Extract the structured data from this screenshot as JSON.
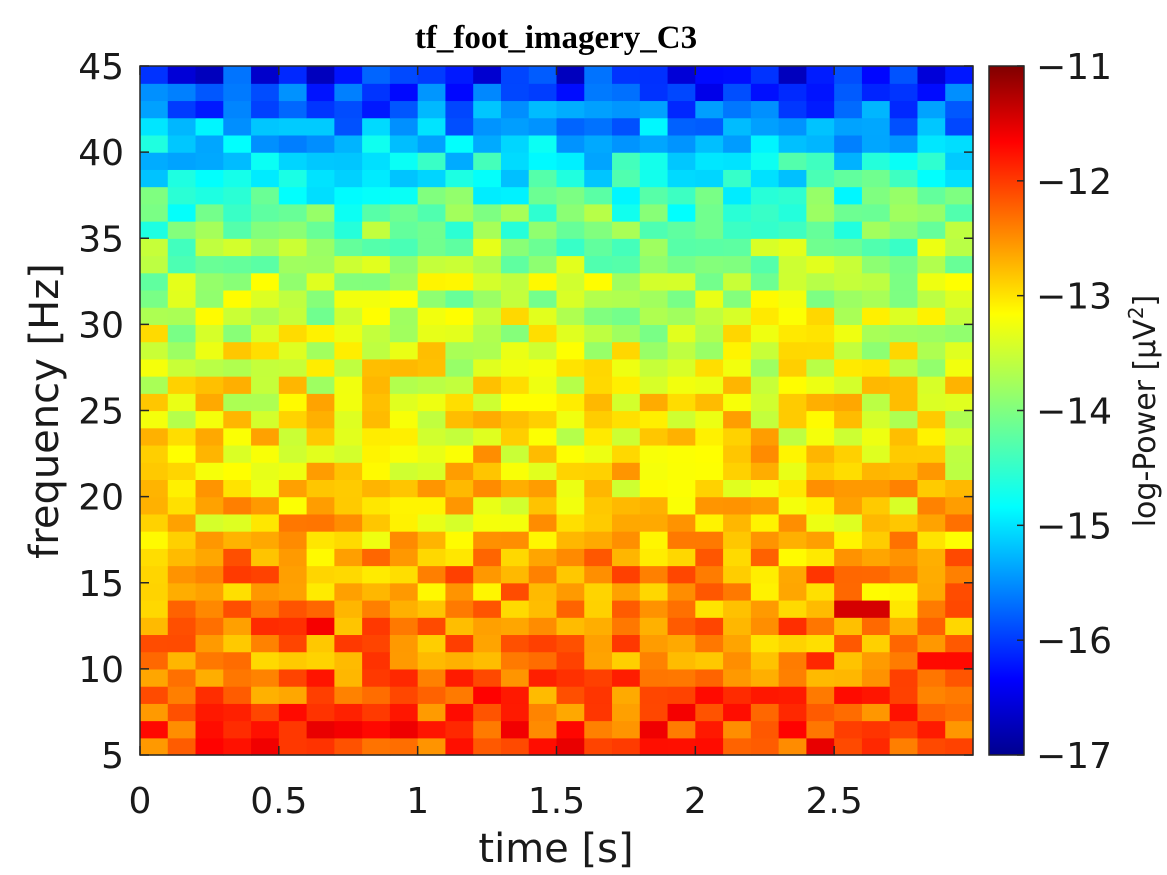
{
  "chart_data": {
    "type": "heatmap",
    "title": "tf_foot_imagery_C3",
    "xlabel": "time [s]",
    "ylabel": "frequency [Hz]",
    "colorbar_label": "log-Power [µV",
    "colorbar_label_superscript": "2",
    "colorbar_label_suffix": "]",
    "colormap": "jet",
    "xlim": [
      0,
      3
    ],
    "ylim": [
      5,
      45
    ],
    "clim": [
      -17,
      -11
    ],
    "x_ticks": [
      "0",
      "0.5",
      "1",
      "1.5",
      "2",
      "2.5"
    ],
    "x_tick_values": [
      0,
      0.5,
      1,
      1.5,
      2,
      2.5
    ],
    "y_ticks": [
      "5",
      "10",
      "15",
      "20",
      "25",
      "30",
      "35",
      "40",
      "45"
    ],
    "y_tick_values": [
      5,
      10,
      15,
      20,
      25,
      30,
      35,
      40,
      45
    ],
    "c_ticks": [
      "-17",
      "-16",
      "-15",
      "-14",
      "-13",
      "-12",
      "-11"
    ],
    "c_tick_values": [
      -17,
      -16,
      -15,
      -14,
      -13,
      -12,
      -11
    ],
    "n_time_bins": 30,
    "n_freq_bins": 40,
    "row_profile_note": "mean log-power per frequency bin, from 5 Hz (first) to 45 Hz (last)",
    "row_mean_log_power": [
      -12.1,
      -12.15,
      -12.2,
      -12.3,
      -12.35,
      -12.5,
      -12.6,
      -12.55,
      -12.6,
      -12.7,
      -12.6,
      -12.7,
      -12.85,
      -12.95,
      -13.0,
      -13.05,
      -13.1,
      -13.1,
      -13.15,
      -13.2,
      -13.25,
      -13.3,
      -13.35,
      -13.4,
      -13.5,
      -13.55,
      -13.6,
      -13.7,
      -13.8,
      -13.9,
      -14.05,
      -14.2,
      -14.4,
      -14.6,
      -14.8,
      -15.0,
      -15.3,
      -15.6,
      -15.9,
      -16.1
    ],
    "hotspots": [
      {
        "t": 0.65,
        "f": 12.5,
        "value": -11.7
      },
      {
        "t": 2.6,
        "f": 13.5,
        "value": -11.5
      },
      {
        "t": 2.9,
        "f": 10.5,
        "value": -11.8
      },
      {
        "t": 2.85,
        "f": 6.5,
        "value": -11.9
      }
    ]
  }
}
